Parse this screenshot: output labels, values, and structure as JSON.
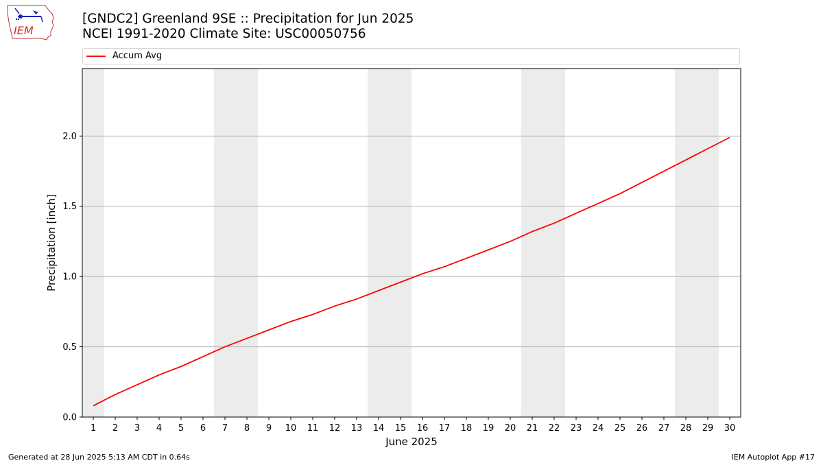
{
  "logo": {
    "text": "IEM",
    "color": "#d62728",
    "accent": "#1f1fbf"
  },
  "title": {
    "line1": "[GNDC2] Greenland 9SE :: Precipitation for Jun 2025",
    "line2": "NCEI 1991-2020 Climate Site: USC00050756"
  },
  "legend": {
    "label": "Accum Avg"
  },
  "footer": {
    "left": "Generated at 28 Jun 2025 5:13 AM CDT in 0.64s",
    "right": "IEM Autoplot App #17"
  },
  "chart_data": {
    "type": "line",
    "title": "[GNDC2] Greenland 9SE :: Precipitation for Jun 2025",
    "subtitle": "NCEI 1991-2020 Climate Site: USC00050756",
    "xlabel": "June 2025",
    "ylabel": "Precipitation [inch]",
    "x": [
      1,
      2,
      3,
      4,
      5,
      6,
      7,
      8,
      9,
      10,
      11,
      12,
      13,
      14,
      15,
      16,
      17,
      18,
      19,
      20,
      21,
      22,
      23,
      24,
      25,
      26,
      27,
      28,
      29,
      30
    ],
    "xlim": [
      0.5,
      30.5
    ],
    "ylim": [
      0,
      2.48
    ],
    "yticks": [
      0.0,
      0.5,
      1.0,
      1.5,
      2.0
    ],
    "ytick_labels": [
      "0.0",
      "0.5",
      "1.0",
      "1.5",
      "2.0"
    ],
    "grid": "horizontal",
    "legend_position": "top",
    "weekend_bands": [
      [
        0.5,
        1.5
      ],
      [
        6.5,
        8.5
      ],
      [
        13.5,
        15.5
      ],
      [
        20.5,
        22.5
      ],
      [
        27.5,
        29.5
      ]
    ],
    "band_color": "#ececec",
    "series": [
      {
        "name": "Accum Avg",
        "color": "#ff0000",
        "values": [
          0.08,
          0.16,
          0.23,
          0.3,
          0.36,
          0.43,
          0.5,
          0.56,
          0.62,
          0.68,
          0.73,
          0.79,
          0.84,
          0.9,
          0.96,
          1.02,
          1.07,
          1.13,
          1.19,
          1.25,
          1.32,
          1.38,
          1.45,
          1.52,
          1.59,
          1.67,
          1.75,
          1.83,
          1.91,
          1.99
        ]
      }
    ]
  }
}
